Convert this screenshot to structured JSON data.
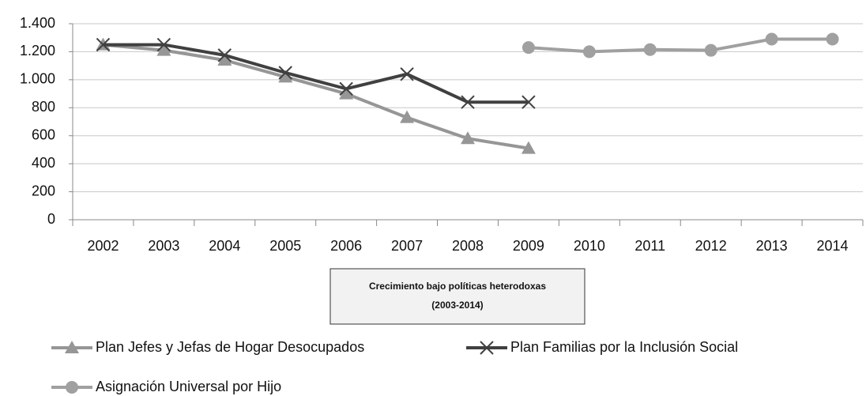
{
  "chart_data": {
    "type": "line",
    "categories": [
      "2002",
      "2003",
      "2004",
      "2005",
      "2006",
      "2007",
      "2008",
      "2009",
      "2010",
      "2011",
      "2012",
      "2013",
      "2014"
    ],
    "series": [
      {
        "name": "Plan Jefes y Jefas de Hogar Desocupados",
        "color": "#969696",
        "marker": "triangle",
        "values": [
          1250,
          1210,
          1140,
          1020,
          900,
          730,
          580,
          510,
          null,
          null,
          null,
          null,
          null
        ]
      },
      {
        "name": "Plan Familias por la Inclusión Social",
        "color": "#404040",
        "marker": "x",
        "values": [
          1250,
          1250,
          1175,
          1050,
          935,
          1040,
          840,
          840,
          null,
          null,
          null,
          null,
          null
        ]
      },
      {
        "name": "Asignación Universal por Hijo",
        "color": "#a0a0a0",
        "marker": "circle",
        "values": [
          null,
          null,
          null,
          null,
          null,
          null,
          null,
          1230,
          1200,
          1215,
          1210,
          1290,
          1290
        ]
      }
    ],
    "ylim": [
      0,
      1400
    ],
    "yticks": [
      0,
      200,
      400,
      600,
      800,
      {
        "value": 1000,
        "label": "1.000"
      },
      {
        "value": 1200,
        "label": "1.200"
      },
      {
        "value": 1400,
        "label": "1.400"
      }
    ],
    "grid": true,
    "annotation": [
      "Crecimiento bajo políticas heterodoxas",
      "(2003-2014)"
    ],
    "legend": "bottom"
  }
}
